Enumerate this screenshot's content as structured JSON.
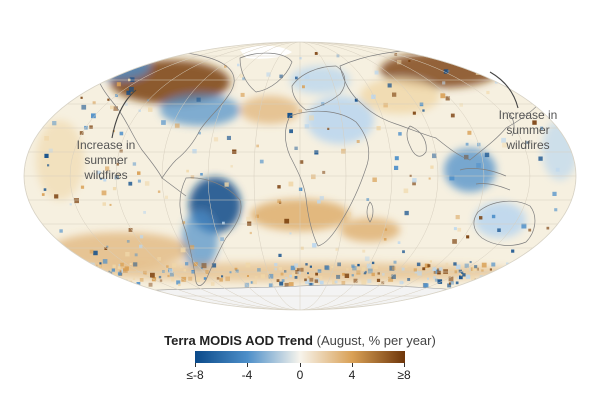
{
  "map": {
    "annotations": {
      "left": [
        "Increase in",
        "summer",
        "wildfires"
      ],
      "right": [
        "Increase in",
        "summer",
        "wildfires"
      ]
    },
    "colors": {
      "strong_negative": "#0b4a8a",
      "negative": "#4d8fc9",
      "weak_negative": "#bcd7ee",
      "neutral": "#f6f2e8",
      "weak_positive": "#f0d7a8",
      "positive": "#d9a055",
      "strong_positive": "#7a3f0c",
      "land_outline": "#8c8c8c",
      "graticule": "#d7cfbf",
      "no_data": "#f2f2f2"
    }
  },
  "legend": {
    "title_bold": "Terra MODIS AOD Trend",
    "title_rest": "(August, % per year)",
    "ticks": [
      "≤-8",
      "-4",
      "0",
      "4",
      "≥8"
    ]
  }
}
